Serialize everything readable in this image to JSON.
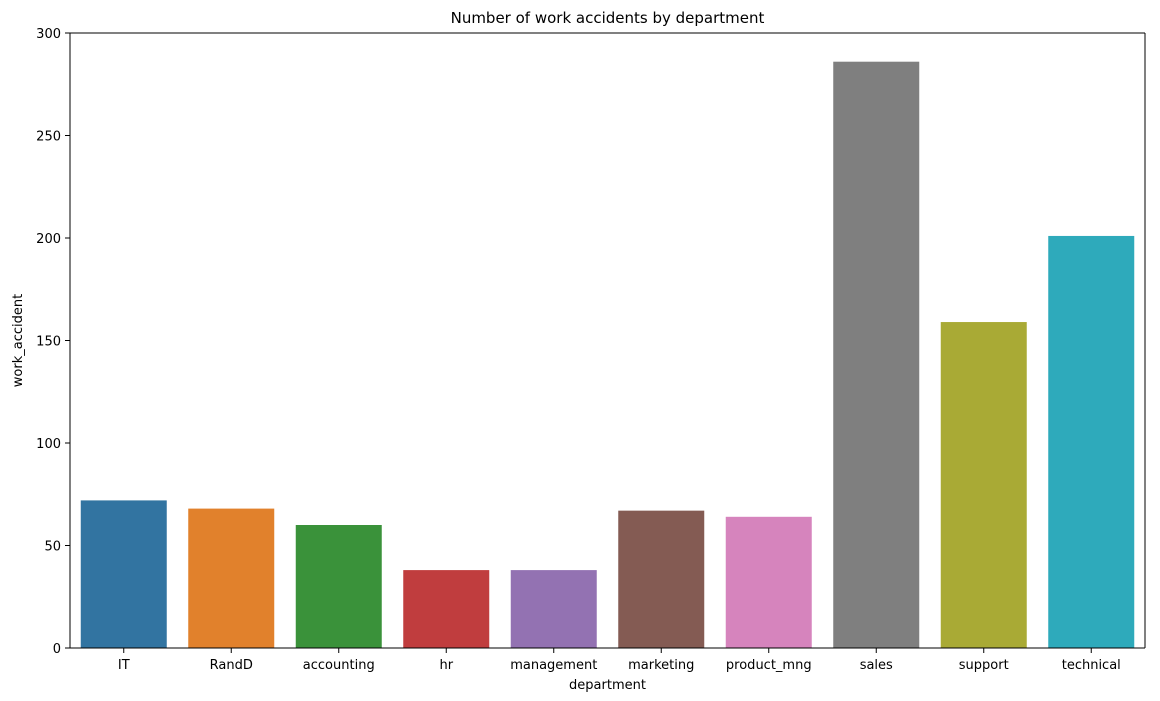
{
  "chart_data": {
    "type": "bar",
    "title": "Number of work accidents by department",
    "xlabel": "department",
    "ylabel": "work_accident",
    "categories": [
      "IT",
      "RandD",
      "accounting",
      "hr",
      "management",
      "marketing",
      "product_mng",
      "sales",
      "support",
      "technical"
    ],
    "values": [
      72,
      68,
      60,
      38,
      38,
      67,
      64,
      286,
      159,
      201
    ],
    "colors": [
      "#3274a1",
      "#e1812c",
      "#3a923a",
      "#c03d3e",
      "#9372b2",
      "#845b53",
      "#d684bd",
      "#7f7f7f",
      "#a9aa35",
      "#2eaabb"
    ],
    "ylim": [
      0,
      300
    ],
    "yticks": [
      0,
      50,
      100,
      150,
      200,
      250,
      300
    ],
    "grid": false,
    "legend": "none"
  }
}
